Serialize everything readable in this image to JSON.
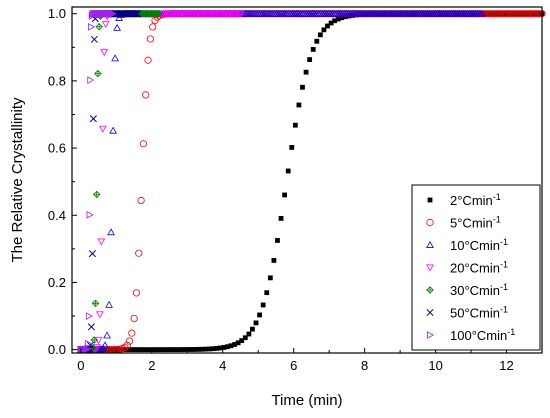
{
  "chart_data": {
    "type": "scatter",
    "title": "",
    "xlabel": "Time (min)",
    "ylabel": "The Relative Crystallinity",
    "xlim": [
      -0.25,
      13
    ],
    "ylim": [
      -0.01,
      1.02
    ],
    "xticks": [
      "0",
      "2",
      "4",
      "6",
      "8",
      "10",
      "12"
    ],
    "yticks": [
      "0.0",
      "0.2",
      "0.4",
      "0.6",
      "0.8",
      "1.0"
    ],
    "legend_position": "bottom-right",
    "series": [
      {
        "name": "2°Cmin⁻¹",
        "label_main": "2°Cmin",
        "label_sup": "-1",
        "marker": "square-filled",
        "color": "#000000",
        "t_half": 5.8,
        "width": 1.55,
        "t_end": 13.0,
        "points": 130
      },
      {
        "name": "5°Cmin⁻¹",
        "label_main": "5°Cmin",
        "label_sup": "-1",
        "marker": "circle",
        "color": "#ff0000",
        "t_half": 1.72,
        "width": 0.42,
        "t_end": 13.0,
        "points": 200
      },
      {
        "name": "10°Cmin⁻¹",
        "label_main": "10°Cmin",
        "label_sup": "-1",
        "marker": "triangle-up",
        "color": "#0000ff",
        "t_half": 0.88,
        "width": 0.2,
        "t_end": 11.3,
        "points": 200
      },
      {
        "name": "20°Cmin⁻¹",
        "label_main": "20°Cmin",
        "label_sup": "-1",
        "marker": "triangle-down",
        "color": "#ff00ff",
        "t_half": 0.6,
        "width": 0.13,
        "t_end": 4.5,
        "points": 110
      },
      {
        "name": "30°Cmin⁻¹",
        "label_main": "30°Cmin",
        "label_sup": "-1",
        "marker": "diamond-cross",
        "color": "#008000",
        "t_half": 0.45,
        "width": 0.09,
        "t_end": 2.2,
        "points": 65
      },
      {
        "name": "50°Cmin⁻¹",
        "label_main": "50°Cmin",
        "label_sup": "-1",
        "marker": "x",
        "color": "#000080",
        "t_half": 0.34,
        "width": 0.07,
        "t_end": 1.6,
        "points": 60
      },
      {
        "name": "100°Cmin⁻¹",
        "label_main": "100°Cmin",
        "label_sup": "-1",
        "marker": "triangle-right",
        "color": "#a020f0",
        "t_half": 0.25,
        "width": 0.05,
        "t_end": 0.9,
        "points": 45
      }
    ]
  }
}
